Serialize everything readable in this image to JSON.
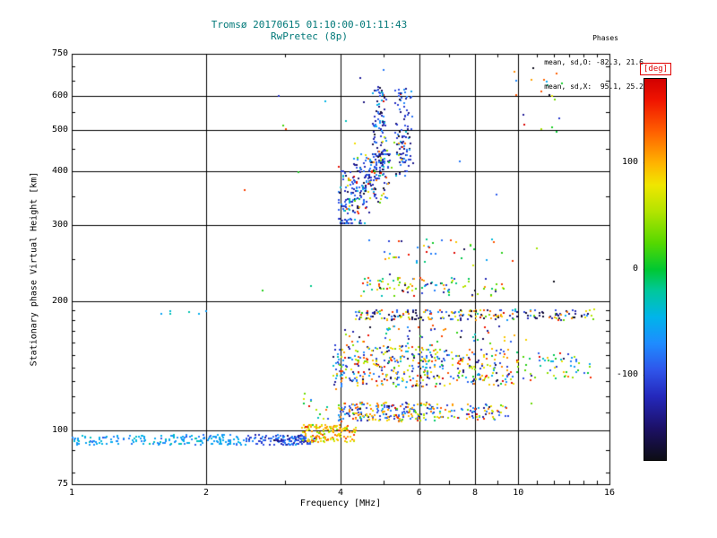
{
  "stats": {
    "heading": "Phases",
    "line_o": "mean, sd,O: -82.3, 21.6",
    "line_x": "mean, sd,X:  95.1, 25.2",
    "o_mean": -82.3,
    "o_sd": 21.6,
    "x_mean": 95.1,
    "x_sd": 25.2
  },
  "colors": {
    "title_text": "#007878",
    "axis_text": "#000000",
    "frame": "#000000",
    "background": "#ffffff",
    "colorbar_label": "#e00000"
  },
  "chart_data": {
    "type": "scatter",
    "title": "Tromsø 20170615 01:10:00-01:11:43",
    "subtitle": "RwPretec (8p)",
    "xlabel": "Frequency [MHz]",
    "ylabel": "Stationary phase Virtual Height [km]",
    "x_scale": "log",
    "y_scale": "log",
    "xlim": [
      1,
      16
    ],
    "ylim": [
      75,
      750
    ],
    "x_major_ticks": [
      1,
      2,
      4,
      6,
      8,
      10,
      16
    ],
    "x_minor_ticks": [
      3,
      5,
      7,
      9,
      11,
      12,
      13,
      14,
      15
    ],
    "x_gridlines": [
      2,
      4,
      6,
      8,
      10
    ],
    "y_major_ticks": [
      75,
      100,
      200,
      300,
      400,
      500,
      600,
      750
    ],
    "y_minor_ticks": [
      80,
      90,
      110,
      120,
      130,
      140,
      150,
      160,
      170,
      180,
      190,
      250,
      350,
      450,
      550,
      650,
      700
    ],
    "y_gridlines": [
      100,
      200,
      300,
      400,
      500,
      600
    ],
    "grid": true,
    "colorbar": {
      "label": "[deg]",
      "min": -180,
      "max": 180,
      "ticks": [
        100,
        0,
        -100
      ],
      "stops": [
        [
          -180,
          "#0d0d14"
        ],
        [
          -150,
          "#1c1066"
        ],
        [
          -120,
          "#2428bc"
        ],
        [
          -95,
          "#2f55ea"
        ],
        [
          -70,
          "#1e8cff"
        ],
        [
          -45,
          "#00b4ea"
        ],
        [
          -20,
          "#00c89c"
        ],
        [
          0,
          "#00c832"
        ],
        [
          25,
          "#55d800"
        ],
        [
          55,
          "#b4e400"
        ],
        [
          80,
          "#f0e600"
        ],
        [
          100,
          "#ffb400"
        ],
        [
          130,
          "#ff6000"
        ],
        [
          160,
          "#f01400"
        ],
        [
          180,
          "#d20000"
        ]
      ]
    },
    "clusters": [
      {
        "name": "E-trace-low",
        "n": 175,
        "f": [
          1.0,
          2.45
        ],
        "h": [
          92.5,
          97.5
        ],
        "deg": [
          -55,
          16
        ]
      },
      {
        "name": "E-trace-mid",
        "n": 125,
        "f": [
          2.45,
          3.5
        ],
        "h": [
          92.5,
          97.5
        ],
        "deg": [
          -100,
          25
        ]
      },
      {
        "name": "E-trace-X-tail",
        "n": 150,
        "f": [
          3.28,
          4.32
        ],
        "h": [
          94,
          103
        ],
        "deg": [
          92,
          32
        ]
      },
      {
        "name": "pre-Es-scatter",
        "n": 14,
        "f": [
          3.25,
          3.95
        ],
        "h": [
          104,
          127
        ],
        "deg": [
          40,
          95
        ]
      },
      {
        "name": "Es-110-O",
        "n": 115,
        "f": [
          3.95,
          6.6
        ],
        "h": [
          105,
          116
        ],
        "deg": [
          -95,
          35
        ]
      },
      {
        "name": "Es-110-X",
        "n": 105,
        "f": [
          3.95,
          6.6
        ],
        "h": [
          105,
          116
        ],
        "deg": [
          92,
          35
        ]
      },
      {
        "name": "Es-110-ext-O",
        "n": 38,
        "f": [
          6.6,
          9.6
        ],
        "h": [
          106,
          115
        ],
        "deg": [
          -90,
          40
        ]
      },
      {
        "name": "Es-110-ext-X",
        "n": 38,
        "f": [
          6.6,
          9.6
        ],
        "h": [
          106,
          115
        ],
        "deg": [
          92,
          40
        ]
      },
      {
        "name": "band-140-O",
        "n": 155,
        "f": [
          3.85,
          6.6
        ],
        "h": [
          126,
          158
        ],
        "deg": [
          -95,
          42
        ]
      },
      {
        "name": "band-140-X",
        "n": 145,
        "f": [
          3.85,
          6.6
        ],
        "h": [
          126,
          158
        ],
        "deg": [
          92,
          45
        ]
      },
      {
        "name": "band-140-ext-O",
        "n": 72,
        "f": [
          6.6,
          9.8
        ],
        "h": [
          127,
          155
        ],
        "deg": [
          -95,
          45
        ]
      },
      {
        "name": "band-140-ext-X",
        "n": 72,
        "f": [
          6.6,
          9.8
        ],
        "h": [
          127,
          155
        ],
        "deg": [
          92,
          45
        ]
      },
      {
        "name": "band-140-far",
        "n": 58,
        "f": [
          9.8,
          14.6
        ],
        "h": [
          130,
          152
        ],
        "deg": [
          0,
          115
        ]
      },
      {
        "name": "band-165-sparse",
        "n": 55,
        "f": [
          4.0,
          10.2
        ],
        "h": [
          159,
          176
        ],
        "deg": [
          0,
          110
        ]
      },
      {
        "name": "line-185-O",
        "n": 92,
        "f": [
          4.3,
          14.8
        ],
        "h": [
          180,
          191
        ],
        "deg": [
          -100,
          40
        ]
      },
      {
        "name": "line-185-X",
        "n": 82,
        "f": [
          4.3,
          14.8
        ],
        "h": [
          180,
          191
        ],
        "deg": [
          92,
          40
        ]
      },
      {
        "name": "line-185-dark",
        "n": 46,
        "f": [
          4.5,
          14.5
        ],
        "h": [
          181,
          190
        ],
        "deg": [
          -163,
          12
        ]
      },
      {
        "name": "line-190-left",
        "n": 6,
        "f": [
          1.45,
          2.05
        ],
        "h": [
          184,
          192
        ],
        "deg": [
          -45,
          14
        ]
      },
      {
        "name": "cluster-215",
        "n": 95,
        "f": [
          4.4,
          9.3
        ],
        "h": [
          205,
          226
        ],
        "deg": [
          45,
          88
        ]
      },
      {
        "name": "sparse-260",
        "n": 36,
        "f": [
          5.0,
          9.2
        ],
        "h": [
          244,
          278
        ],
        "deg": [
          -15,
          120
        ]
      },
      {
        "name": "F-blob-O",
        "n": 280,
        "f": [
          3.95,
          5.15
        ],
        "h": [
          303,
          438
        ],
        "deg": [
          -110,
          42
        ],
        "trend": {
          "h0": 316,
          "h1": 430,
          "spread": 34
        }
      },
      {
        "name": "F-branch-inner",
        "n": 95,
        "f": [
          4.72,
          5.06
        ],
        "h": [
          415,
          628
        ],
        "deg": [
          -112,
          38
        ]
      },
      {
        "name": "F-branch-outer",
        "n": 95,
        "f": [
          5.3,
          5.82
        ],
        "h": [
          390,
          622
        ],
        "deg": [
          -112,
          38
        ]
      },
      {
        "name": "F-X-sprinkle",
        "n": 40,
        "f": [
          4.15,
          5.6
        ],
        "h": [
          328,
          482
        ],
        "deg": [
          98,
          45
        ]
      },
      {
        "name": "top-right-sparse",
        "n": 18,
        "f": [
          9.7,
          12.6
        ],
        "h": [
          480,
          700
        ],
        "deg": [
          30,
          110
        ]
      },
      {
        "name": "background-sparse",
        "n": 32,
        "f": [
          2.2,
          15.5
        ],
        "h": [
          100,
          700
        ],
        "deg": [
          0,
          120
        ]
      }
    ]
  }
}
